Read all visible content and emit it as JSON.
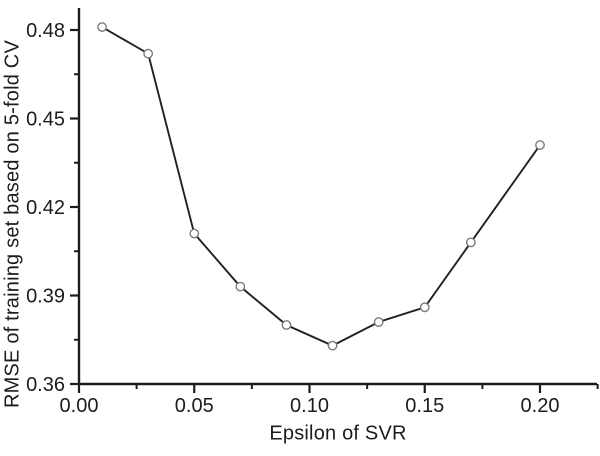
{
  "figure": {
    "background": "#ffffff",
    "axis_color": "#1c1c1c",
    "tick_label_color": "#1c1c1c",
    "line_color": "#222222",
    "marker_stroke": "#7a7a7a",
    "marker_fill": "#ffffff"
  },
  "chart_data": {
    "type": "line",
    "title": "",
    "xlabel": "Epsilon of SVR",
    "ylabel": "RMSE of training set based on 5-fold CV",
    "x": [
      0.01,
      0.03,
      0.05,
      0.07,
      0.09,
      0.11,
      0.13,
      0.15,
      0.17,
      0.2
    ],
    "y": [
      0.481,
      0.472,
      0.411,
      0.393,
      0.38,
      0.373,
      0.381,
      0.386,
      0.408,
      0.441
    ],
    "series": [
      {
        "name": "RMSE of training set (5-fold CV)"
      }
    ],
    "xlim": [
      0,
      0.225
    ],
    "ylim": [
      0.36,
      0.4875
    ],
    "x_major_ticks": [
      0.0,
      0.05,
      0.1,
      0.15,
      0.2
    ],
    "x_minor_ticks": [
      0.025,
      0.075,
      0.125,
      0.175,
      0.225
    ],
    "y_major_ticks": [
      0.36,
      0.39,
      0.42,
      0.45,
      0.48
    ],
    "y_minor_ticks": [
      0.375,
      0.405,
      0.435,
      0.465
    ],
    "x_tick_labels": [
      "0.00",
      "0.05",
      "0.10",
      "0.15",
      "0.20"
    ],
    "y_tick_labels": [
      "0.36",
      "0.39",
      "0.42",
      "0.45",
      "0.48"
    ],
    "grid": false,
    "legend": false,
    "marker": "open-circle",
    "frame": "left-bottom-only"
  }
}
